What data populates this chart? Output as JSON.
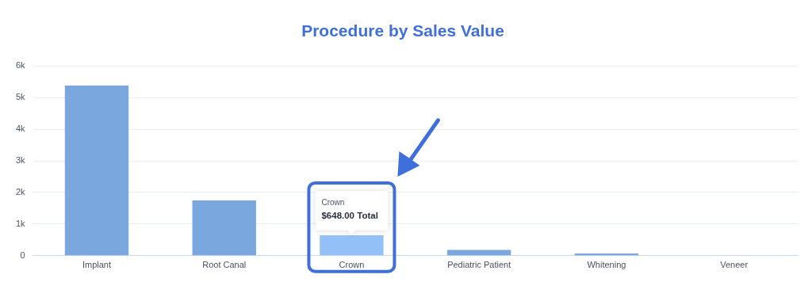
{
  "chart_data": {
    "type": "bar",
    "title": "Procedure by Sales Value",
    "categories": [
      "Implant",
      "Root Canal",
      "Crown",
      "Pediatric Patient",
      "Whitening",
      "Veneer"
    ],
    "values": [
      5380,
      1750,
      648,
      180,
      70,
      0
    ],
    "colors": [
      "#7ba7df",
      "#7ba7df",
      "#93c0f7",
      "#7ba7df",
      "#7ba7df",
      "#7ba7df"
    ],
    "ylim": [
      0,
      6000
    ],
    "yticks": [
      {
        "value": 0,
        "label": "0"
      },
      {
        "value": 1000,
        "label": "1k"
      },
      {
        "value": 2000,
        "label": "2k"
      },
      {
        "value": 3000,
        "label": "3k"
      },
      {
        "value": 4000,
        "label": "4k"
      },
      {
        "value": 5000,
        "label": "5k"
      },
      {
        "value": 6000,
        "label": "6k"
      }
    ],
    "grid": "y",
    "legend": false,
    "annotations": [
      {
        "text": "Crown\n$648.00 Total",
        "x": "Crown",
        "y": 648
      }
    ]
  }
}
